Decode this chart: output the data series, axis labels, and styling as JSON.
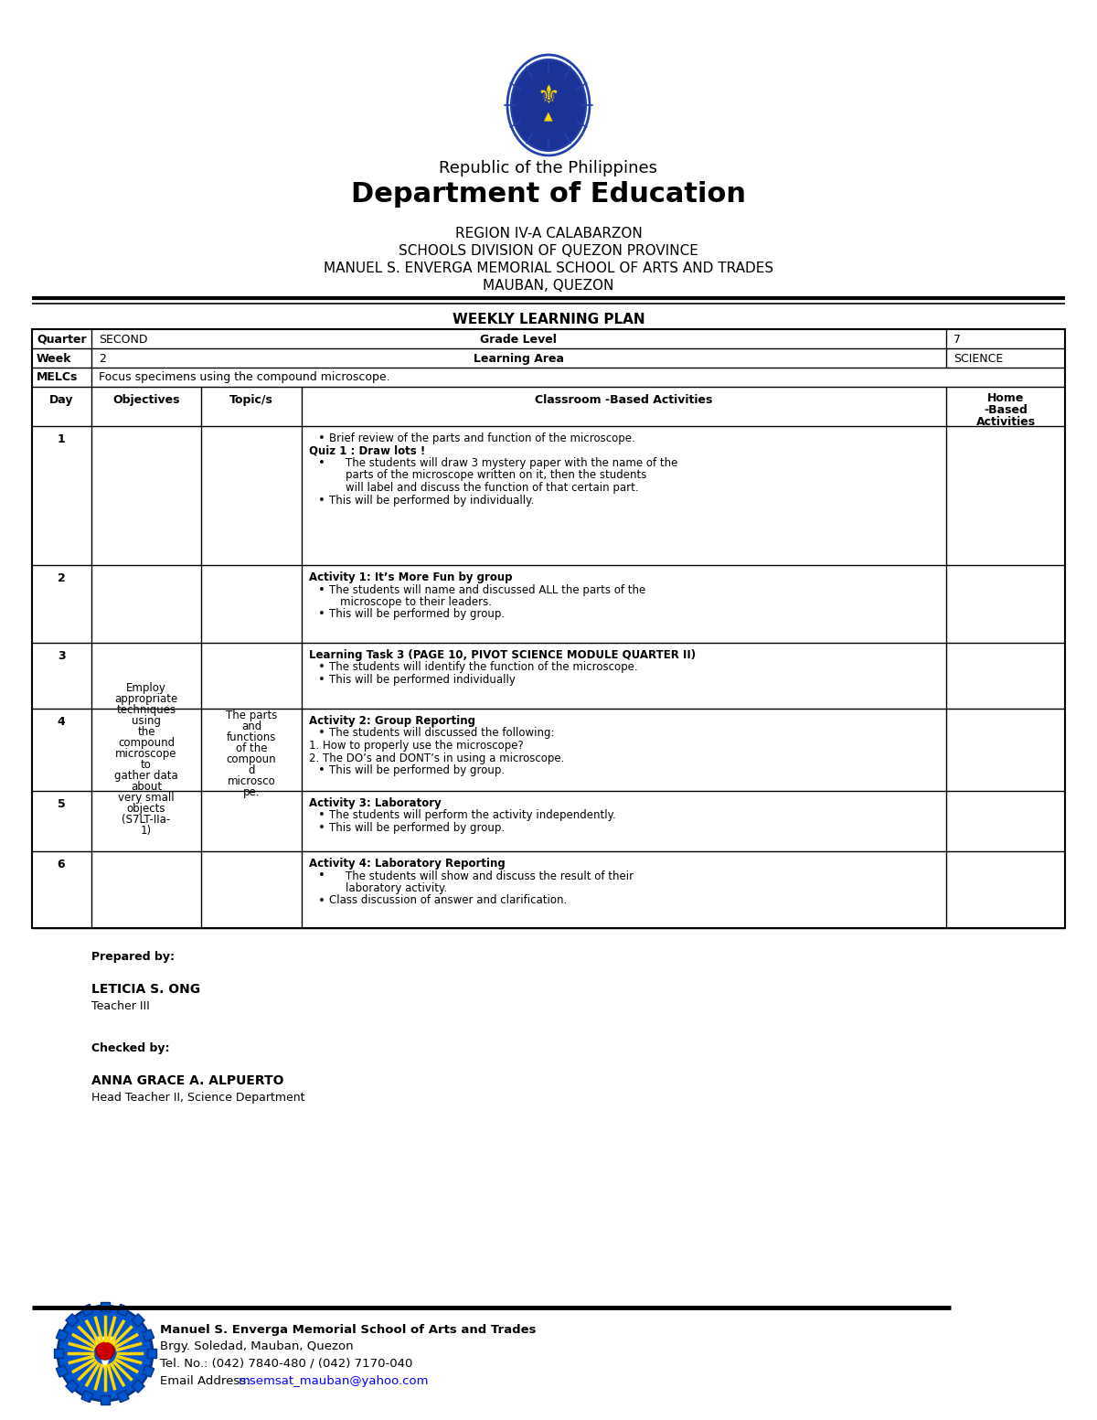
{
  "title_line1": "Republic of the Philippines",
  "title_line2": "Department of Education",
  "title_line3": "REGION IV-A CALABARZON",
  "title_line4": "SCHOOLS DIVISION OF QUEZON PROVINCE",
  "title_line5": "MANUEL S. ENVERGA MEMORIAL SCHOOL OF ARTS AND TRADES",
  "title_line6": "MAUBAN, QUEZON",
  "plan_title": "WEEKLY LEARNING PLAN",
  "quarter_label": "Quarter",
  "quarter_val": "SECOND",
  "grade_label": "Grade Level",
  "grade_val": "7",
  "week_label": "Week",
  "week_val": "2",
  "area_label": "Learning Area",
  "area_val": "SCIENCE",
  "melcs_label": "MELCs",
  "melcs_val": "Focus specimens using the compound microscope.",
  "day_label": "Day",
  "obj_label": "Objectives",
  "topic_label": "Topic/s",
  "class_label": "Classroom -Based Activities",
  "home_label": "Home\n-Based\nActivities",
  "objectives_text": [
    "Employ",
    "appropriate",
    "techniques",
    "using",
    "the",
    "compound",
    "microscope",
    "to",
    "gather data",
    "about",
    "very small",
    "objects",
    "(S7LT-IIa-",
    "1)"
  ],
  "topics_text": [
    "The parts",
    "and",
    "functions",
    "of the",
    "compoun",
    "d",
    "microsco",
    "pe."
  ],
  "day1_activities": [
    {
      "bullet": true,
      "bold": false,
      "indent": false,
      "text": "Brief review of the parts and function of the microscope."
    },
    {
      "bullet": false,
      "bold": true,
      "indent": false,
      "text": "Quiz 1 : Draw lots !"
    },
    {
      "bullet": true,
      "bold": false,
      "indent": true,
      "text": "The students will draw 3 mystery paper with the name of the parts of the microscope written on it, then the students will label and discuss the function of that certain part."
    },
    {
      "bullet": true,
      "bold": false,
      "indent": false,
      "text": "This will be performed by individually."
    }
  ],
  "day2_activities": [
    {
      "bullet": false,
      "bold": true,
      "indent": false,
      "text": "Activity 1: It’s More Fun by group"
    },
    {
      "bullet": true,
      "bold": false,
      "indent": false,
      "text": "The students will name and discussed ALL the parts of the microscope to their leaders."
    },
    {
      "bullet": true,
      "bold": false,
      "indent": false,
      "text": "This will be performed by group."
    }
  ],
  "day3_activities": [
    {
      "bullet": false,
      "bold": true,
      "indent": false,
      "text": "Learning Task 3 (PAGE 10, PIVOT SCIENCE MODULE QUARTER II)"
    },
    {
      "bullet": true,
      "bold": false,
      "indent": false,
      "text": "The students will identify the function of the microscope."
    },
    {
      "bullet": true,
      "bold": false,
      "indent": false,
      "text": "This will be performed individually"
    }
  ],
  "day4_activities": [
    {
      "bullet": false,
      "bold": true,
      "indent": false,
      "text": "Activity 2: Group Reporting"
    },
    {
      "bullet": true,
      "bold": false,
      "indent": false,
      "text": "The students will discussed the following:"
    },
    {
      "bullet": false,
      "bold": false,
      "indent": false,
      "text": "1. How to properly use the microscope?"
    },
    {
      "bullet": false,
      "bold": false,
      "indent": false,
      "text": "2. The DO’s and DONT’s in using a microscope."
    },
    {
      "bullet": true,
      "bold": false,
      "indent": false,
      "text": "This will be performed by group."
    }
  ],
  "day5_activities": [
    {
      "bullet": false,
      "bold": true,
      "indent": false,
      "text": "Activity 3: Laboratory"
    },
    {
      "bullet": true,
      "bold": false,
      "indent": false,
      "text": "The students will perform the activity independently."
    },
    {
      "bullet": true,
      "bold": false,
      "indent": false,
      "text": "This will be performed by group."
    }
  ],
  "day6_activities": [
    {
      "bullet": false,
      "bold": true,
      "indent": false,
      "text": "Activity 4: Laboratory Reporting"
    },
    {
      "bullet": true,
      "bold": false,
      "indent": true,
      "text": "The students will show and discuss the result of their laboratory activity."
    },
    {
      "bullet": true,
      "bold": false,
      "indent": false,
      "text": "Class discussion of answer and clarification."
    }
  ],
  "prepared_by_label": "Prepared by:",
  "prepared_name": "LETICIA S. ONG",
  "prepared_title": "Teacher III",
  "checked_by_label": "Checked by:",
  "checked_name": "ANNA GRACE A. ALPUERTO",
  "checked_title": "Head Teacher II, Science Department",
  "footer_school": "Manuel S. Enverga Memorial School of Arts and Trades",
  "footer_address": "Brgy. Soledad, Mauban, Quezon",
  "footer_tel": "Tel. No.: (042) 7840-480 / (042) 7170-040",
  "footer_email_pre": "Email Address: ",
  "footer_email": "msemsat_mauban@yahoo.com",
  "bg_color": "#ffffff"
}
